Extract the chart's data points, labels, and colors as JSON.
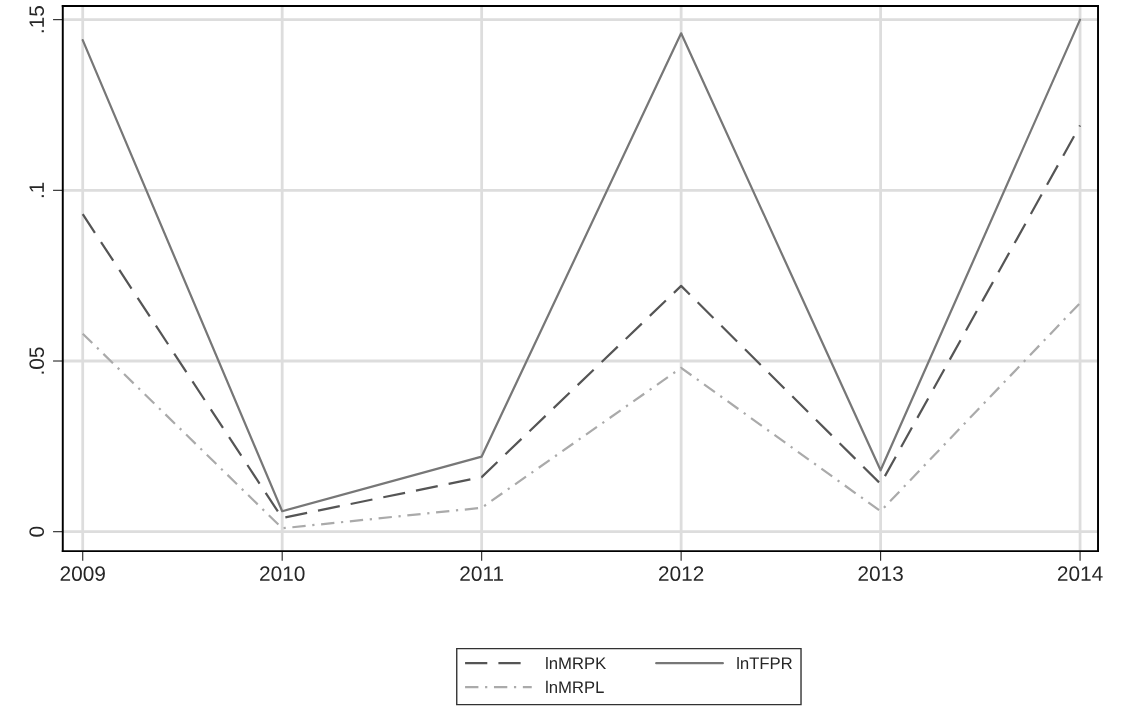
{
  "chart_data": {
    "type": "line",
    "x": [
      2009,
      2010,
      2011,
      2012,
      2013,
      2014
    ],
    "series": [
      {
        "name": "lnMRPK",
        "color": "#555555",
        "line_style": "dashed",
        "values": [
          0.093,
          0.004,
          0.016,
          0.072,
          0.014,
          0.119
        ]
      },
      {
        "name": "lnMRPL",
        "color": "#aaaaaa",
        "line_style": "dashdot",
        "values": [
          0.058,
          0.001,
          0.007,
          0.048,
          0.006,
          0.067
        ]
      },
      {
        "name": "lnTFPR",
        "color": "#777777",
        "line_style": "solid",
        "values": [
          0.144,
          0.006,
          0.022,
          0.146,
          0.018,
          0.15
        ]
      }
    ],
    "xlim": [
      2008.9,
      2014.09
    ],
    "xticks": [
      2009,
      2010,
      2011,
      2012,
      2013,
      2014
    ],
    "ylim": [
      -0.0057,
      0.154
    ],
    "yticks": [
      {
        "value": 0,
        "label": "0"
      },
      {
        "value": 0.05,
        "label": ".05"
      },
      {
        "value": 0.1,
        "label": ".1"
      },
      {
        "value": 0.15,
        "label": ".15"
      }
    ],
    "grid": true,
    "legend": "bottom",
    "marker": "none"
  }
}
